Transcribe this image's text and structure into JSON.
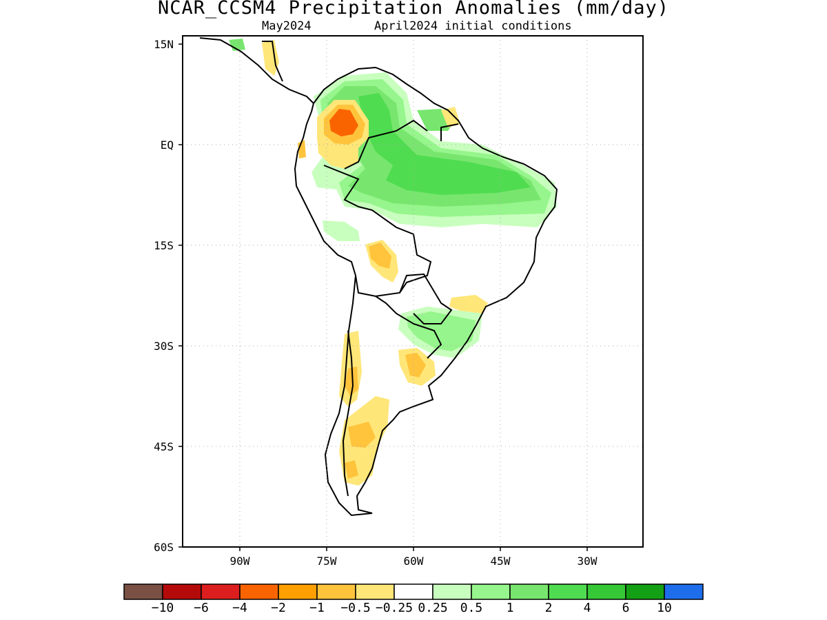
{
  "title": "NCAR_CCSM4 Precipitation Anomalies (mm/day)",
  "subtitle_left": "May2024",
  "subtitle_right": "April2024 initial conditions",
  "map": {
    "lat_ticks": [
      "15N",
      "EQ",
      "15S",
      "30S",
      "45S",
      "60S"
    ],
    "lon_ticks": [
      "90W",
      "75W",
      "60W",
      "45W",
      "30W"
    ],
    "grid": "dotted"
  },
  "colorbar": {
    "labels": [
      "-10",
      "-6",
      "-4",
      "-2",
      "-1",
      "-0.5",
      "-0.25",
      "0.25",
      "0.5",
      "1",
      "2",
      "4",
      "6",
      "10"
    ],
    "colors": [
      "#7b5044",
      "#b40a0a",
      "#dc1e1e",
      "#fa6400",
      "#ffa000",
      "#ffc43c",
      "#ffe678",
      "#ffffff",
      "#c8ffbe",
      "#96f58c",
      "#78e66e",
      "#50dc50",
      "#37c837",
      "#14a014",
      "#1e6eeb"
    ]
  }
}
